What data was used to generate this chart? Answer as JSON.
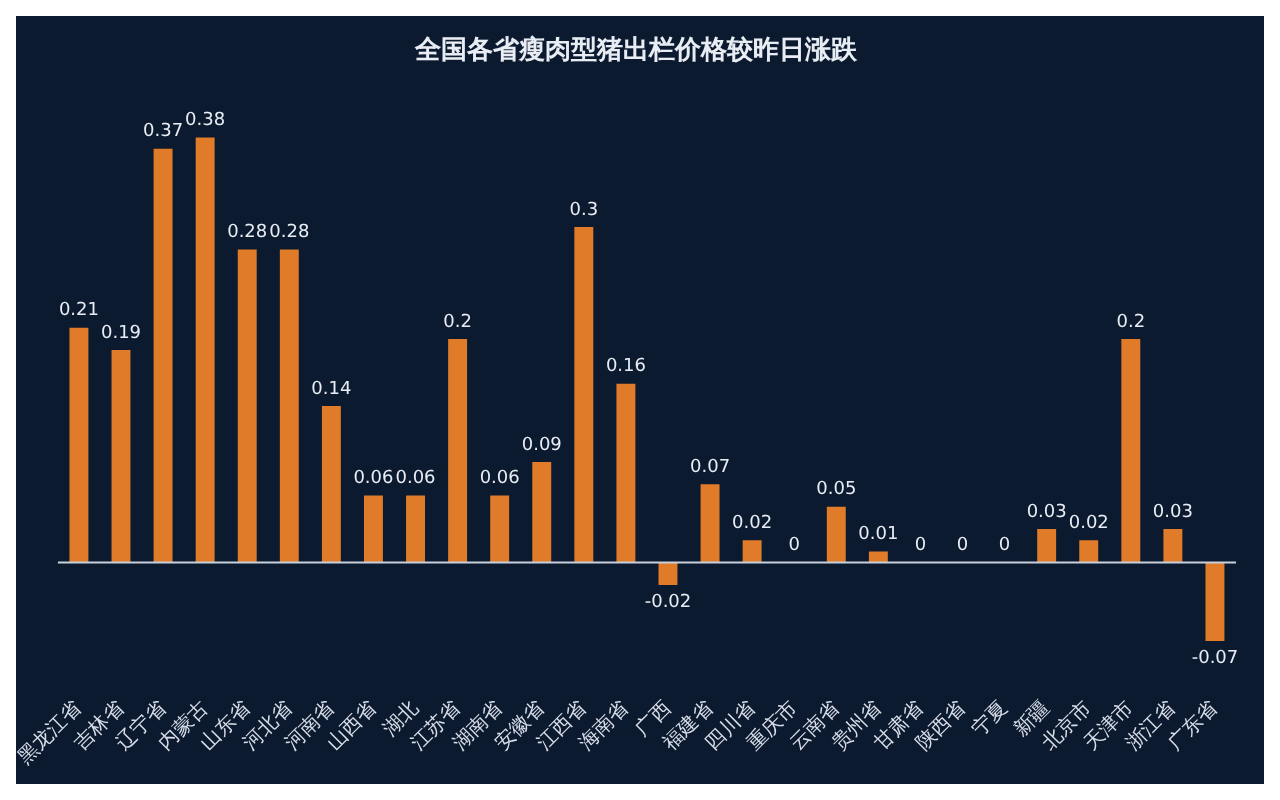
{
  "chart_data": {
    "type": "bar",
    "title": "全国各省瘦肉型猪出栏价格较昨日涨跌",
    "categories": [
      "黑龙江省",
      "吉林省",
      "辽宁省",
      "内蒙古",
      "山东省",
      "河北省",
      "河南省",
      "山西省",
      "湖北",
      "江苏省",
      "湖南省",
      "安徽省",
      "江西省",
      "海南省",
      "广西",
      "福建省",
      "四川省",
      "重庆市",
      "云南省",
      "贵州省",
      "甘肃省",
      "陕西省",
      "宁夏",
      "新疆",
      "北京市",
      "天津市",
      "浙江省",
      "广东省"
    ],
    "values": [
      0.21,
      0.19,
      0.37,
      0.38,
      0.28,
      0.28,
      0.14,
      0.06,
      0.06,
      0.2,
      0.06,
      0.09,
      0.3,
      0.16,
      -0.02,
      0.07,
      0.02,
      0,
      0.05,
      0.01,
      0,
      0,
      0,
      0.03,
      0.02,
      0.2,
      0.03,
      -0.07
    ],
    "color": "#e07b2a",
    "data_labels": true
  }
}
